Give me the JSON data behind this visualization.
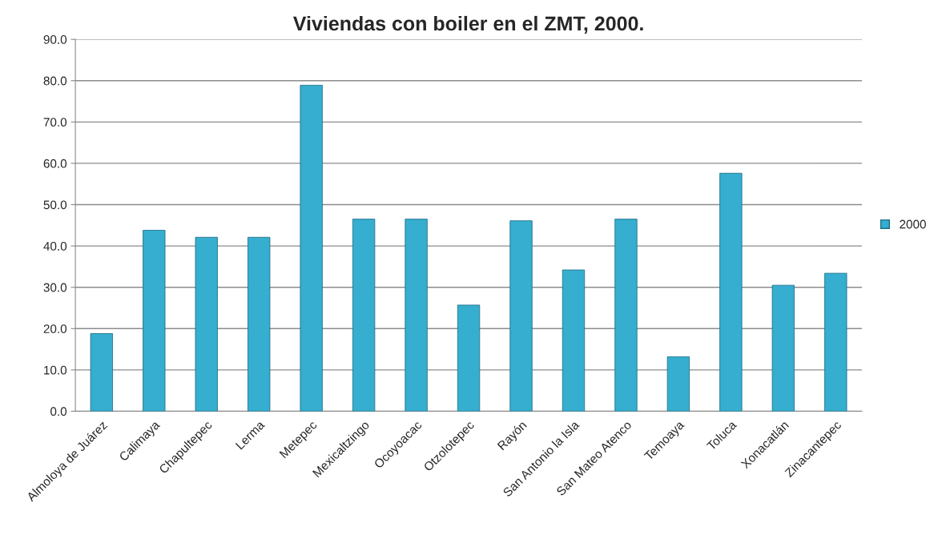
{
  "chart_data": {
    "type": "bar",
    "title": "Viviendas con boiler en el ZMT, 2000.",
    "categories": [
      "Almoloya de Juárez",
      "Calimaya",
      "Chapultepec",
      "Lerma",
      "Metepec",
      "Mexicaltzingo",
      "Ocoyoacac",
      "Otzolotepec",
      "Rayón",
      "San Antonio la Isla",
      "San Mateo Atenco",
      "Temoaya",
      "Toluca",
      "Xonacatlán",
      "Zinacantepec"
    ],
    "series": [
      {
        "name": "2000",
        "color": "#35aecf",
        "values": [
          18.8,
          43.8,
          42.1,
          42.1,
          78.9,
          46.5,
          46.5,
          25.7,
          46.1,
          34.2,
          46.5,
          13.2,
          57.6,
          30.5,
          33.4
        ]
      }
    ],
    "ylim": [
      0,
      90
    ],
    "yticks": [
      {
        "value": 0,
        "label": "0.0"
      },
      {
        "value": 10,
        "label": "10.0"
      },
      {
        "value": 20,
        "label": "20.0"
      },
      {
        "value": 30,
        "label": "30.0"
      },
      {
        "value": 40,
        "label": "40.0"
      },
      {
        "value": 50,
        "label": "50.0"
      },
      {
        "value": 60,
        "label": "60.0"
      },
      {
        "value": 70,
        "label": "70.0"
      },
      {
        "value": 80,
        "label": "80.0"
      },
      {
        "value": 90,
        "label": "90.0"
      }
    ],
    "grid": "y",
    "legend": "right"
  }
}
